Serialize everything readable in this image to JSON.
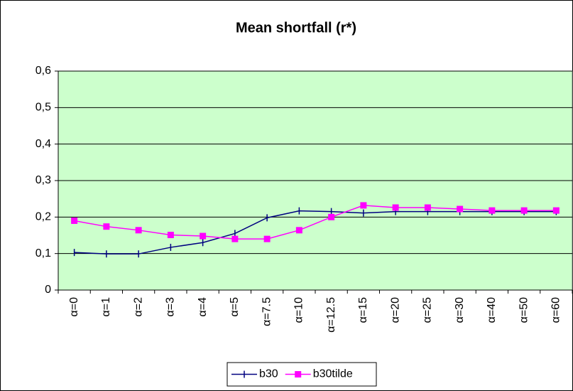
{
  "chart_data": {
    "type": "line",
    "title": "Mean shortfall (r*)",
    "categories": [
      "α=0",
      "α=1",
      "α=2",
      "α=3",
      "α=4",
      "α=5",
      "α=7.5",
      "α=10",
      "α=12.5",
      "α=15",
      "α=20",
      "α=25",
      "α=30",
      "α=40",
      "α=50",
      "α=60"
    ],
    "series": [
      {
        "name": "b30",
        "color": "#000080",
        "values": [
          0.103,
          0.099,
          0.099,
          0.117,
          0.13,
          0.155,
          0.198,
          0.217,
          0.215,
          0.211,
          0.215,
          0.215,
          0.215,
          0.215,
          0.215,
          0.215
        ]
      },
      {
        "name": "b30tilde",
        "color": "#ff00ff",
        "values": [
          0.19,
          0.174,
          0.164,
          0.151,
          0.148,
          0.14,
          0.14,
          0.164,
          0.2,
          0.232,
          0.226,
          0.226,
          0.222,
          0.218,
          0.218,
          0.218
        ]
      }
    ],
    "ylim": [
      0,
      0.6
    ],
    "yticks": [
      0,
      {
        "value": 0.1,
        "label": "0,1"
      },
      {
        "value": 0.2,
        "label": "0,2"
      },
      {
        "value": 0.3,
        "label": "0,3"
      },
      {
        "value": 0.4,
        "label": "0,4"
      },
      {
        "value": 0.5,
        "label": "0,5"
      },
      {
        "value": 0.6,
        "label": "0,6"
      }
    ],
    "grid": true,
    "legend": "bottom",
    "plot_background": "#ccffcc"
  }
}
